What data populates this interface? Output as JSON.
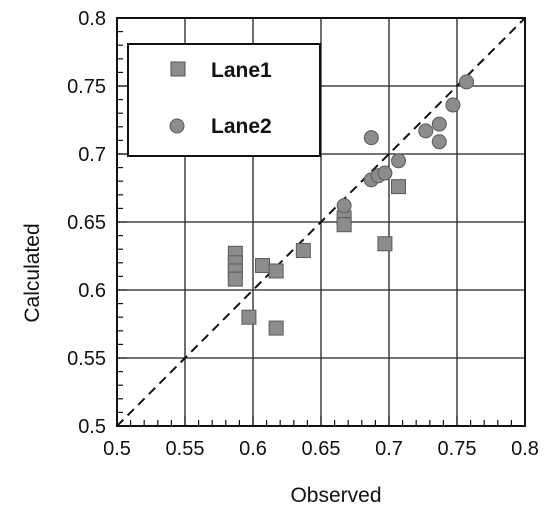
{
  "chart_data": {
    "type": "scatter",
    "title": "",
    "xlabel": "Observed",
    "ylabel": "Calculated",
    "xlim": [
      0.5,
      0.8
    ],
    "ylim": [
      0.5,
      0.8
    ],
    "x_ticks": [
      0.5,
      0.55,
      0.6,
      0.65,
      0.7,
      0.75,
      0.8
    ],
    "x_tick_labels": [
      "0.5",
      "0.55",
      "0.6",
      "0.65",
      "0.7",
      "0.75",
      "0.8"
    ],
    "y_ticks": [
      0.5,
      0.55,
      0.6,
      0.65,
      0.7,
      0.75,
      0.8
    ],
    "y_tick_labels": [
      "0.5",
      "0.55",
      "0.6",
      "0.65",
      "0.7",
      "0.75",
      "0.8"
    ],
    "grid": true,
    "legend_position": "top-left",
    "reference_line": {
      "style": "dashed",
      "from": [
        0.5,
        0.5
      ],
      "to": [
        0.8,
        0.8
      ]
    },
    "marker_color": "#8c8c8c",
    "series": [
      {
        "name": "Lane1",
        "marker": "square",
        "points": [
          [
            0.587,
            0.627
          ],
          [
            0.587,
            0.62
          ],
          [
            0.587,
            0.614
          ],
          [
            0.587,
            0.608
          ],
          [
            0.597,
            0.58
          ],
          [
            0.607,
            0.618
          ],
          [
            0.617,
            0.614
          ],
          [
            0.617,
            0.572
          ],
          [
            0.637,
            0.629
          ],
          [
            0.667,
            0.653
          ],
          [
            0.667,
            0.648
          ],
          [
            0.697,
            0.634
          ],
          [
            0.707,
            0.676
          ]
        ]
      },
      {
        "name": "Lane2",
        "marker": "circle",
        "points": [
          [
            0.667,
            0.662
          ],
          [
            0.687,
            0.712
          ],
          [
            0.687,
            0.681
          ],
          [
            0.692,
            0.684
          ],
          [
            0.697,
            0.686
          ],
          [
            0.707,
            0.695
          ],
          [
            0.727,
            0.717
          ],
          [
            0.737,
            0.722
          ],
          [
            0.737,
            0.709
          ],
          [
            0.747,
            0.736
          ],
          [
            0.757,
            0.753
          ]
        ]
      }
    ]
  }
}
